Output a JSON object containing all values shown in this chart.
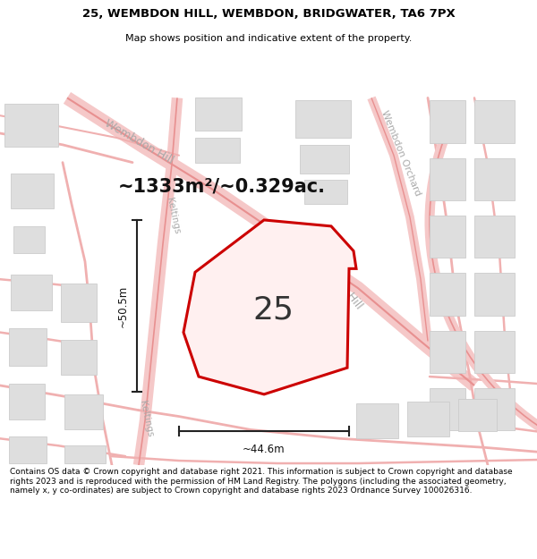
{
  "title_line1": "25, WEMBDON HILL, WEMBDON, BRIDGWATER, TA6 7PX",
  "title_line2": "Map shows position and indicative extent of the property.",
  "footer_text": "Contains OS data © Crown copyright and database right 2021. This information is subject to Crown copyright and database rights 2023 and is reproduced with the permission of HM Land Registry. The polygons (including the associated geometry, namely x, y co-ordinates) are subject to Crown copyright and database rights 2023 Ordnance Survey 100026316.",
  "area_label": "~1333m²/~0.329ac.",
  "number_label": "25",
  "dim_width": "~44.6m",
  "dim_height": "~50.5m",
  "map_bg": "#f7f7f7",
  "plot_bg": "#ffffff",
  "road_fill": "#f5c8c8",
  "road_edge": "#e89090",
  "building_fill": "#dedede",
  "building_stroke": "#cccccc",
  "red_plot_color": "#cc0000",
  "dark_line_color": "#222222",
  "street_label_color": "#aaaaaa",
  "figsize": [
    6.0,
    6.25
  ],
  "dpi": 100
}
